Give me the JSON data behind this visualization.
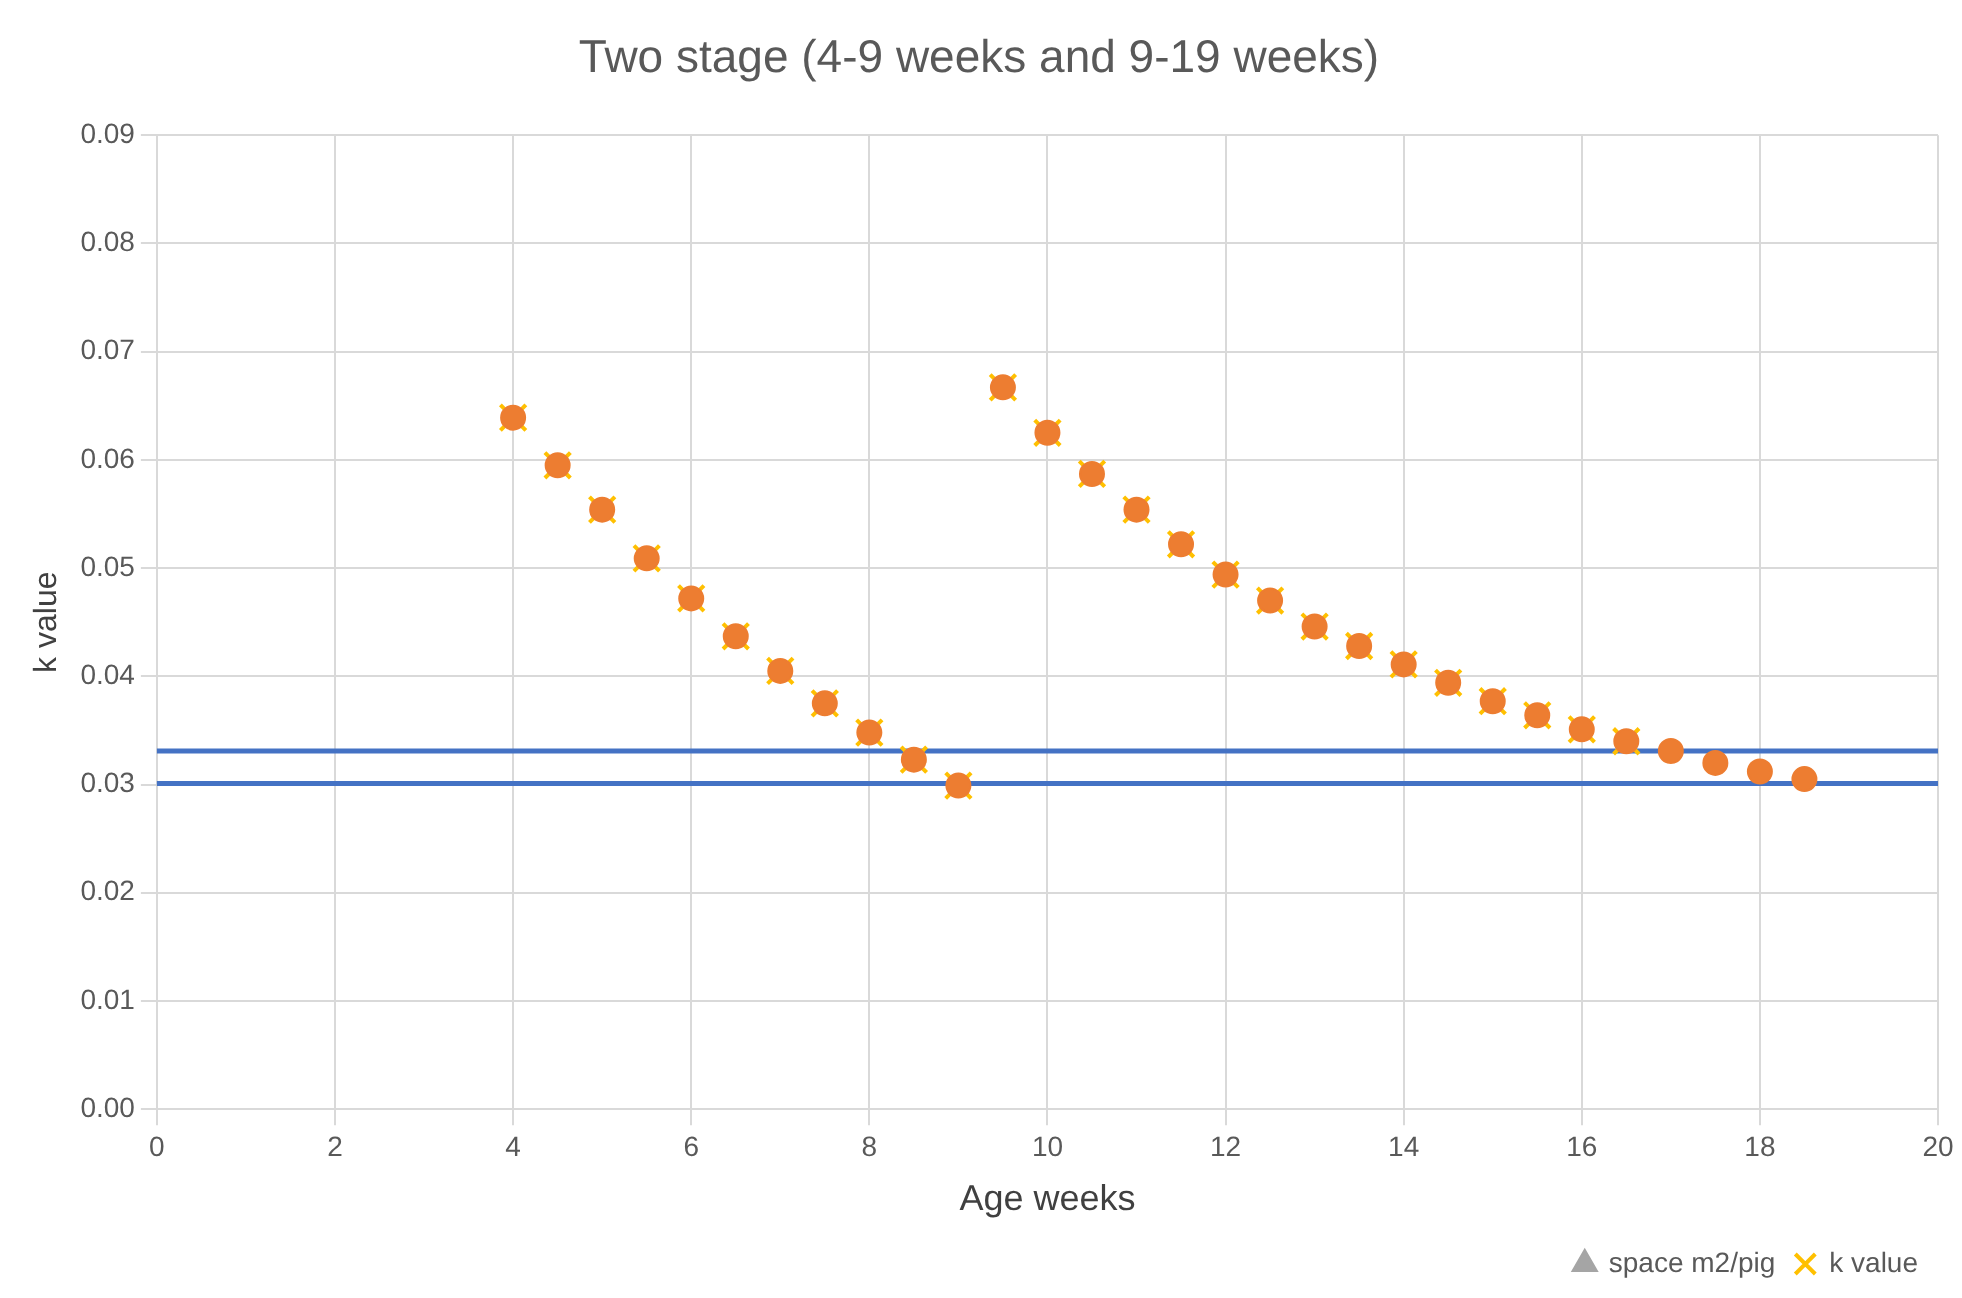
{
  "chart_data": {
    "type": "scatter",
    "title": "Two stage (4-9 weeks and 9-19 weeks)",
    "xlabel": "Age weeks",
    "ylabel": "k value",
    "x": [
      4,
      4.5,
      5,
      5.5,
      6,
      6.5,
      7,
      7.5,
      8,
      8.5,
      9,
      9.5,
      10,
      10.5,
      11,
      11.5,
      12,
      12.5,
      13,
      13.5,
      14,
      14.5,
      15,
      15.5,
      16,
      16.5,
      17,
      17.5,
      18,
      18.5
    ],
    "series": [
      {
        "name": "space m2/pig",
        "color": "#a5a5a5",
        "marker": "triangle",
        "values": [
          null,
          null,
          null,
          null,
          null,
          null,
          null,
          null,
          null,
          null,
          null,
          null,
          null,
          null,
          null,
          null,
          null,
          null,
          null,
          null,
          null,
          null,
          null,
          null,
          null,
          null,
          null,
          null,
          null,
          null
        ]
      },
      {
        "name": "k value",
        "color": "#ffc000",
        "marker": "cross",
        "values": [
          0.0639,
          0.0595,
          0.0554,
          0.0509,
          0.0472,
          0.0437,
          0.0405,
          0.0375,
          0.0348,
          0.0323,
          0.0299,
          0.0667,
          0.0625,
          0.0587,
          0.0554,
          0.0522,
          0.0494,
          0.047,
          0.0446,
          0.0428,
          0.0411,
          0.0394,
          0.0377,
          0.0364,
          0.0351,
          0.034,
          null,
          null,
          null,
          null
        ]
      },
      {
        "color": "#ed7d31",
        "marker": "circle",
        "values": [
          0.0639,
          0.0595,
          0.0554,
          0.0509,
          0.0472,
          0.0437,
          0.0405,
          0.0375,
          0.0348,
          0.0323,
          0.0299,
          0.0667,
          0.0625,
          0.0587,
          0.0554,
          0.0522,
          0.0494,
          0.047,
          0.0446,
          0.0428,
          0.0411,
          0.0394,
          0.0377,
          0.0364,
          0.0351,
          0.034,
          0.0331,
          0.032,
          0.0312,
          0.0305
        ]
      }
    ],
    "ref_lines": [
      {
        "axis": "y",
        "value": 0.0331,
        "color": "#4472c4"
      },
      {
        "axis": "y",
        "value": 0.0301,
        "color": "#4472c4"
      }
    ],
    "xlim": [
      0,
      20
    ],
    "xticks": [
      0,
      2,
      4,
      6,
      8,
      10,
      12,
      14,
      16,
      18,
      20
    ],
    "ylim": [
      0,
      0.09
    ],
    "yticks": [
      {
        "value": 0,
        "label": "0.00"
      },
      {
        "value": 0.01,
        "label": "0.01"
      },
      {
        "value": 0.02,
        "label": "0.02"
      },
      {
        "value": 0.03,
        "label": "0.03"
      },
      {
        "value": 0.04,
        "label": "0.04"
      },
      {
        "value": 0.05,
        "label": "0.05"
      },
      {
        "value": 0.06,
        "label": "0.06"
      },
      {
        "value": 0.07,
        "label": "0.07"
      },
      {
        "value": 0.08,
        "label": "0.08"
      },
      {
        "value": 0.09,
        "label": "0.09"
      }
    ],
    "grid": true,
    "legend": "bottom right"
  }
}
